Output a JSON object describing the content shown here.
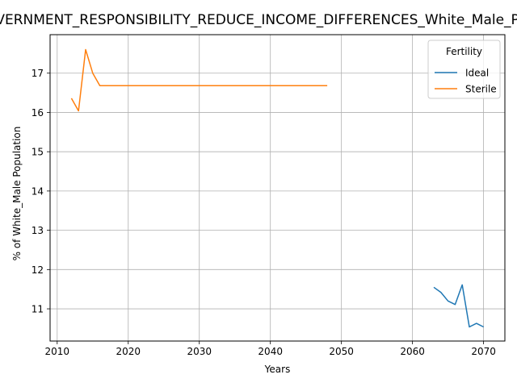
{
  "chart_data": {
    "type": "line",
    "title": "GOVERNMENT_RESPONSIBILITY_REDUCE_INCOME_DIFFERENCES_White_Male_Population",
    "xlabel": "Years",
    "ylabel": "% of White_Male Population",
    "xlim": [
      2009,
      2073
    ],
    "ylim": [
      10.18,
      17.98
    ],
    "xticks": [
      2010,
      2020,
      2030,
      2040,
      2050,
      2060,
      2070
    ],
    "yticks": [
      11,
      12,
      13,
      14,
      15,
      16,
      17
    ],
    "grid": true,
    "legend": {
      "title": "Fertility",
      "position": "top-right"
    },
    "series": [
      {
        "name": "Ideal",
        "color": "#1f77b4",
        "x": [
          2063,
          2064,
          2065,
          2066,
          2067,
          2068,
          2069,
          2070
        ],
        "y": [
          11.55,
          11.42,
          11.2,
          11.11,
          11.61,
          10.54,
          10.63,
          10.54
        ]
      },
      {
        "name": "Sterile",
        "color": "#ff7f0e",
        "x": [
          2012,
          2013,
          2014,
          2015,
          2016,
          2017,
          2020,
          2025,
          2030,
          2035,
          2040,
          2045,
          2048
        ],
        "y": [
          16.36,
          16.04,
          17.6,
          17.0,
          16.68,
          16.68,
          16.68,
          16.68,
          16.68,
          16.68,
          16.68,
          16.68,
          16.68
        ]
      }
    ]
  }
}
